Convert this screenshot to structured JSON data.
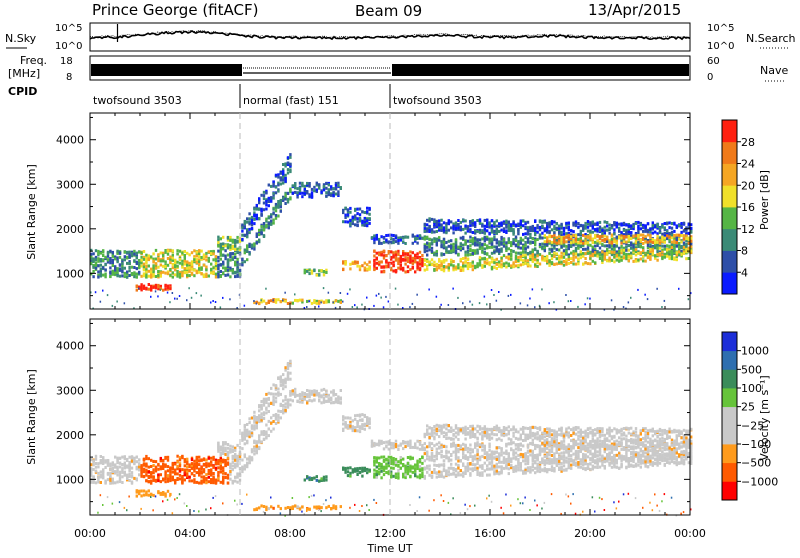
{
  "header": {
    "station": "Prince George (fitACF)",
    "beam": "Beam 09",
    "date": "13/Apr/2015"
  },
  "colors": {
    "power": [
      "#0a1bff",
      "#2e4fa8",
      "#3a8a76",
      "#55b545",
      "#f0e02a",
      "#f5a623",
      "#f07a1a",
      "#ff2010"
    ],
    "velocity": [
      "#ff0000",
      "#ff5a00",
      "#ff9b1c",
      "#c9c9c9",
      "#c9c9c9",
      "#66c43a",
      "#3a8c5a",
      "#2e6fb0",
      "#1c2ed8"
    ]
  },
  "chart_data": [
    {
      "type": "line",
      "name": "N.Sky / N.Search",
      "ylabel": "N.Sky",
      "right_label": "N.Search",
      "left_ticks": [
        "10^5",
        "10^0"
      ],
      "right_ticks": [
        "10^5",
        "10^0"
      ],
      "x": [
        "00:00",
        "04:00",
        "08:00",
        "12:00",
        "16:00",
        "20:00",
        "00:00"
      ]
    },
    {
      "type": "line",
      "name": "Freq / Nave",
      "ylabel": "Freq. [MHz]",
      "right_label": "Nave",
      "left_ticks": [
        "18",
        "8"
      ],
      "right_ticks": [
        "60",
        "0"
      ]
    },
    {
      "type": "table",
      "name": "CPID",
      "label": "CPID",
      "segments": [
        {
          "label": "twofsound 3503",
          "start": 0,
          "end": 6
        },
        {
          "label": "normal (fast) 151",
          "start": 6,
          "end": 12
        },
        {
          "label": "twofsound 3503",
          "start": 12,
          "end": 24
        }
      ]
    },
    {
      "type": "heatmap",
      "name": "power",
      "ylabel": "Slant Range [km]",
      "yticks": [
        1000,
        2000,
        3000,
        4000
      ],
      "ylim": [
        200,
        4600
      ],
      "xlim": [
        0,
        24
      ],
      "colorbar_label": "Power [dB]",
      "colorbar_ticks": [
        "4",
        "8",
        "12",
        "16",
        "20",
        "24",
        "28"
      ]
    },
    {
      "type": "heatmap",
      "name": "velocity",
      "ylabel": "Slant Range [km]",
      "yticks": [
        1000,
        2000,
        3000,
        4000
      ],
      "ylim": [
        200,
        4600
      ],
      "xlim": [
        0,
        24
      ],
      "xticks": [
        "00:00",
        "04:00",
        "08:00",
        "12:00",
        "16:00",
        "20:00",
        "00:00"
      ],
      "xlabel": "Time UT",
      "colorbar_label": "Velocity [m s⁻¹]",
      "colorbar_ticks": [
        "1000",
        "500",
        "100",
        "25",
        "−25",
        "−100",
        "−500",
        "−1000"
      ]
    }
  ]
}
